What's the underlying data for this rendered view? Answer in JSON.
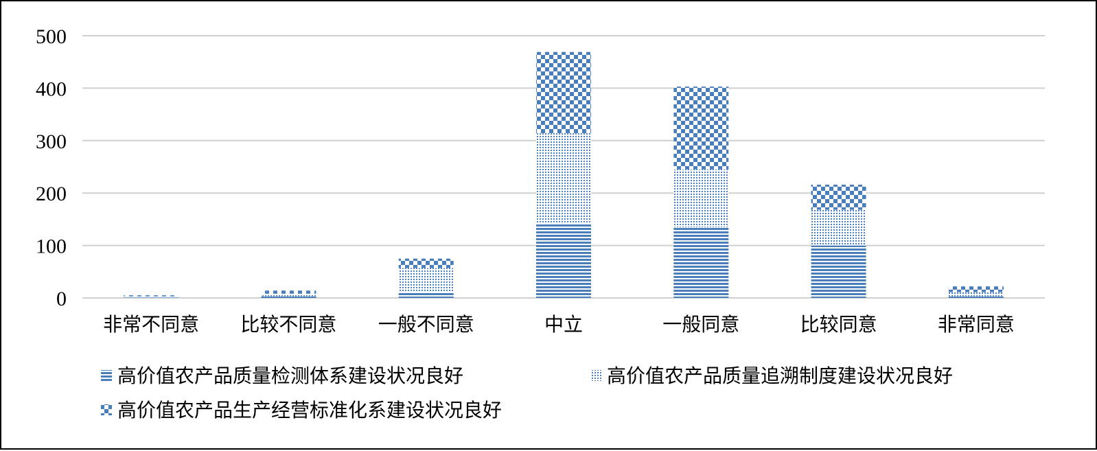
{
  "chart_data": {
    "type": "bar",
    "stacked": true,
    "categories": [
      "非常不同意",
      "比较不同意",
      "一般不同意",
      "中立",
      "一般同意",
      "比较同意",
      "非常同意"
    ],
    "series": [
      {
        "name": "高价值农产品质量检测体系建设状况良好",
        "pattern": "horizontal-lines",
        "values": [
          1,
          3,
          12,
          142,
          135,
          100,
          3
        ]
      },
      {
        "name": "高价值农产品质量追溯制度建设状况良好",
        "pattern": "dots",
        "values": [
          2,
          5,
          45,
          172,
          110,
          68,
          8
        ]
      },
      {
        "name": "高价值农产品生产经营标准化系建设状况良好",
        "pattern": "checkerboard",
        "values": [
          2,
          6,
          18,
          155,
          158,
          48,
          11
        ]
      }
    ],
    "yticks": [
      0,
      100,
      200,
      300,
      400,
      500
    ],
    "ylim": [
      0,
      500
    ],
    "grid": true,
    "legend_position": "bottom",
    "color": "#4a7ebb"
  }
}
